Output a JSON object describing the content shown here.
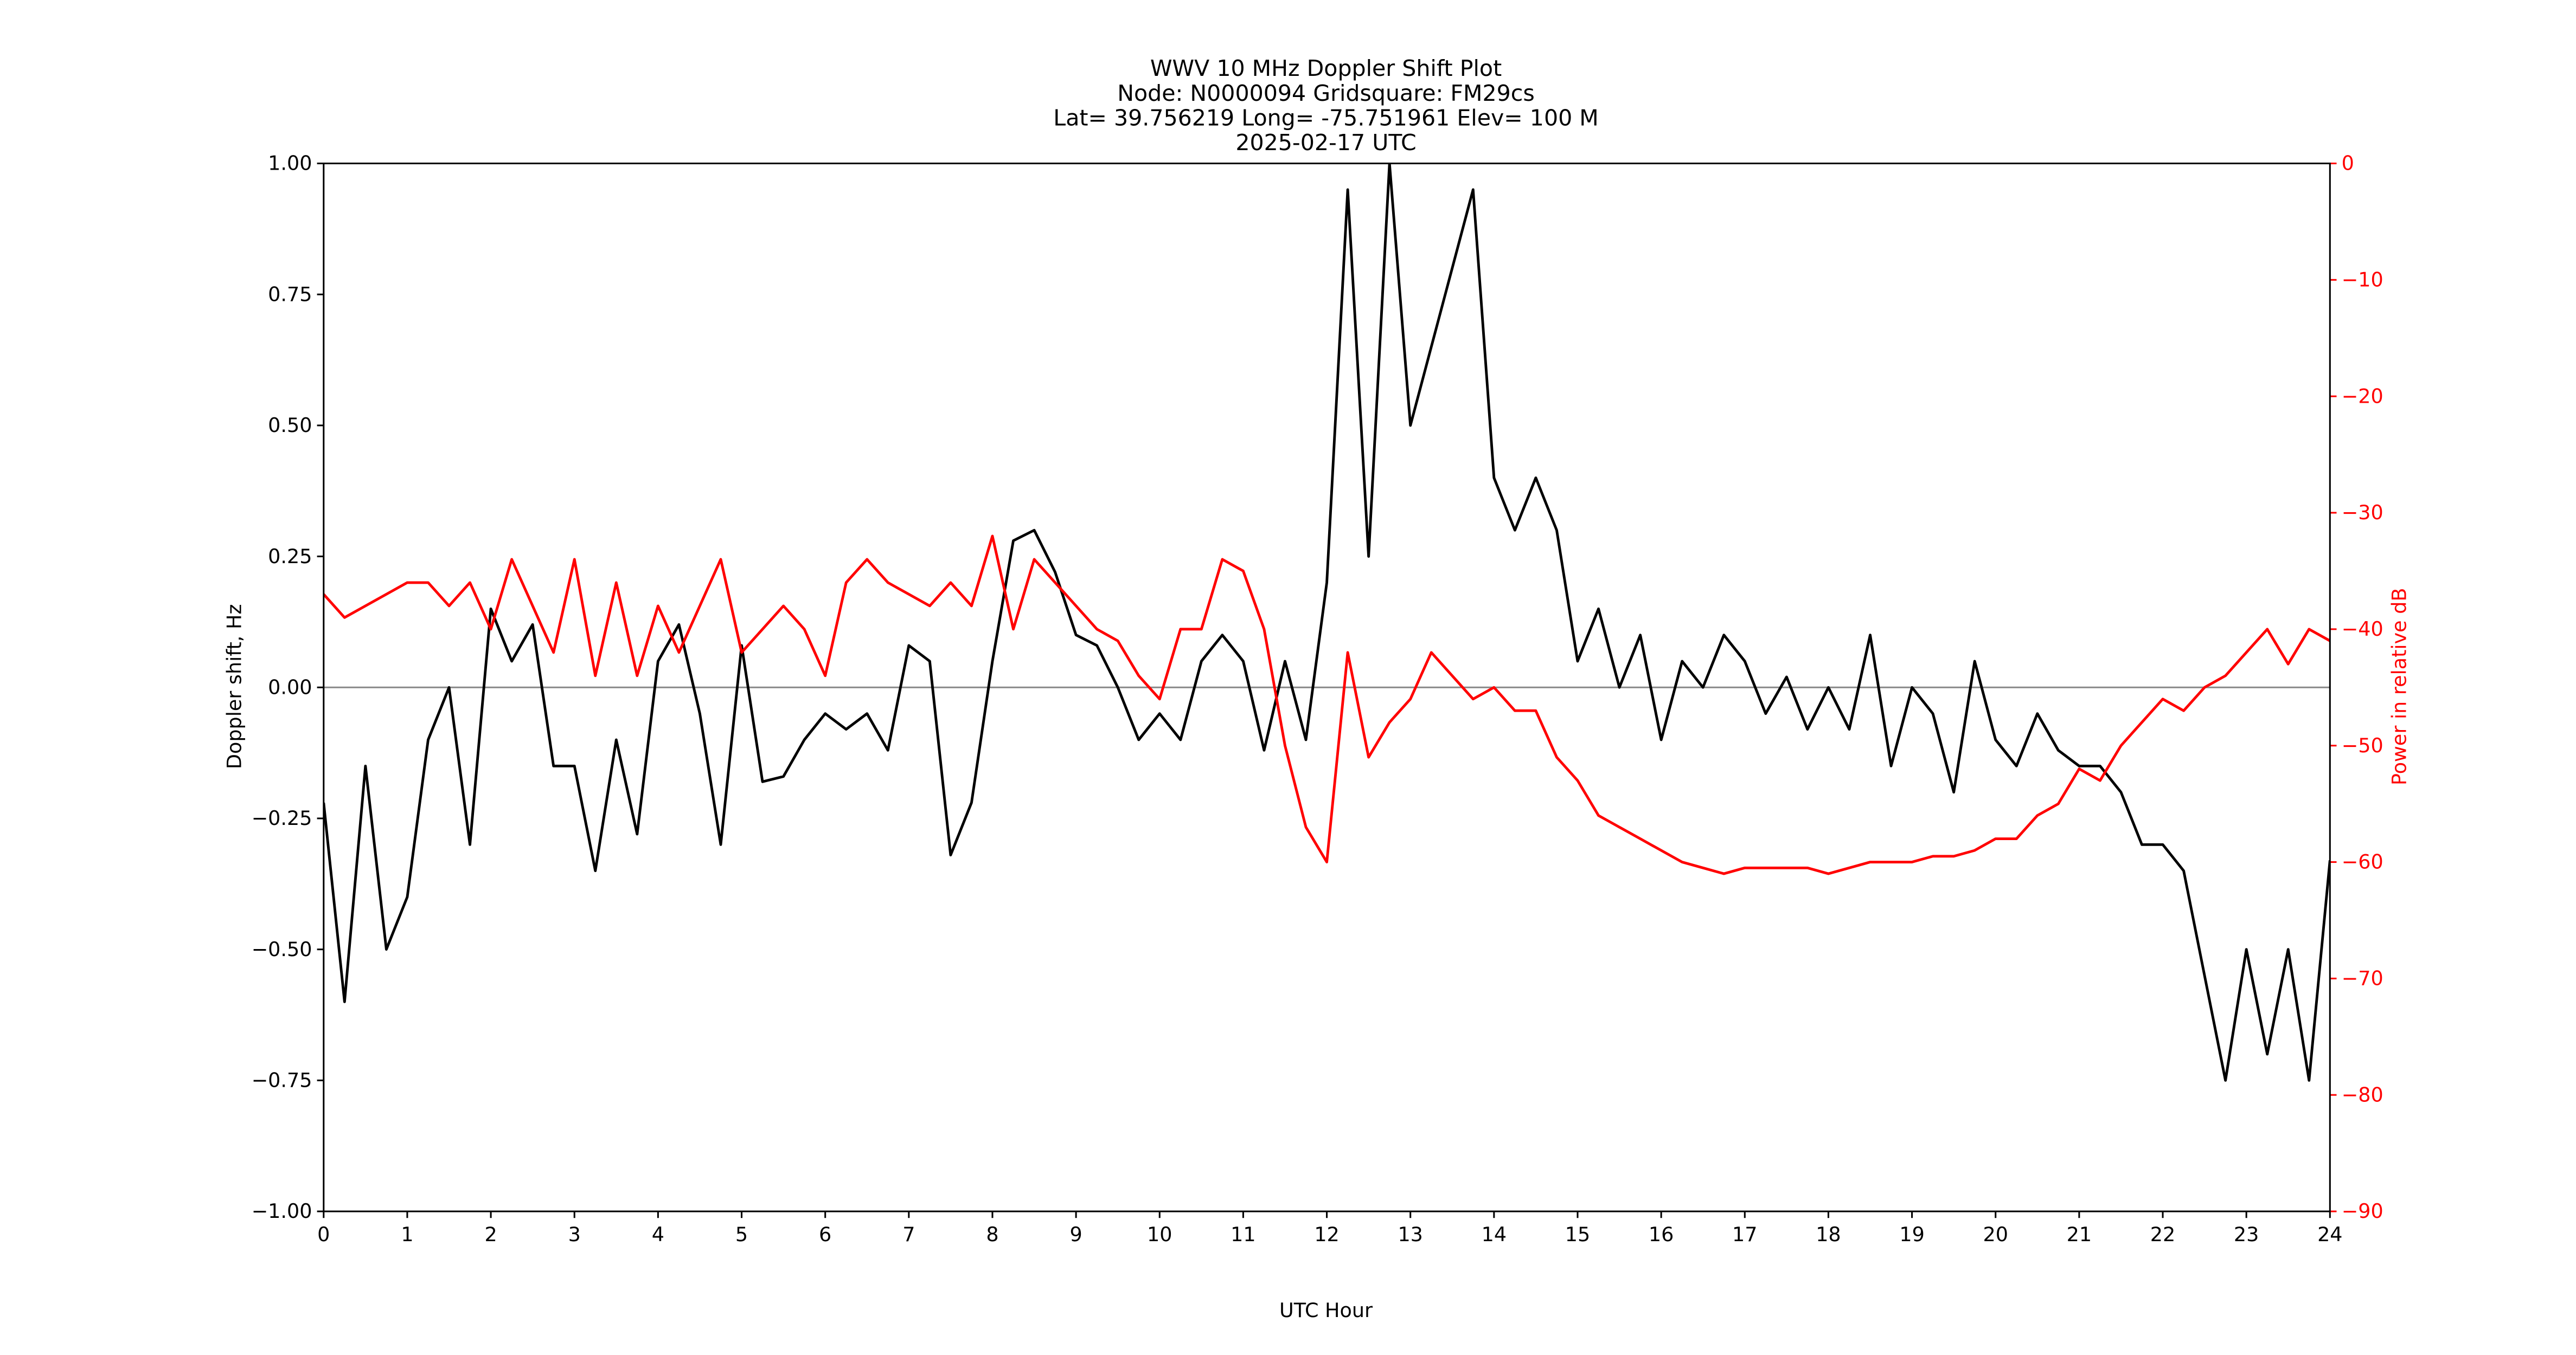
{
  "chart_data": {
    "type": "line",
    "title": [
      "WWV 10 MHz Doppler Shift Plot",
      "Node:  N0000094     Gridsquare:  FM29cs",
      "Lat= 39.756219    Long= -75.751961    Elev= 100 M",
      "2025-02-17  UTC"
    ],
    "xlabel": "UTC Hour",
    "ylabel": "Doppler shift, Hz",
    "y2label": "Power in relative dB",
    "y2color": "#ff0000",
    "xlim": [
      0,
      24
    ],
    "ylim": [
      -1,
      1
    ],
    "y2lim": [
      -90,
      0
    ],
    "xticks": [
      0,
      1,
      2,
      3,
      4,
      5,
      6,
      7,
      8,
      9,
      10,
      11,
      12,
      13,
      14,
      15,
      16,
      17,
      18,
      19,
      20,
      21,
      22,
      23,
      24
    ],
    "yticks": [
      {
        "value": -1,
        "label": "−1.00"
      },
      {
        "value": -0.75,
        "label": "−0.75"
      },
      {
        "value": -0.5,
        "label": "−0.50"
      },
      {
        "value": -0.25,
        "label": "−0.25"
      },
      {
        "value": 0,
        "label": "0.00"
      },
      {
        "value": 0.25,
        "label": "0.25"
      },
      {
        "value": 0.5,
        "label": "0.50"
      },
      {
        "value": 0.75,
        "label": "0.75"
      },
      {
        "value": 1,
        "label": "1.00"
      }
    ],
    "y2ticks": [
      {
        "value": -90,
        "label": "−90"
      },
      {
        "value": -80,
        "label": "−80"
      },
      {
        "value": -70,
        "label": "−70"
      },
      {
        "value": -60,
        "label": "−60"
      },
      {
        "value": -50,
        "label": "−50"
      },
      {
        "value": -40,
        "label": "−40"
      },
      {
        "value": -30,
        "label": "−30"
      },
      {
        "value": -20,
        "label": "−20"
      },
      {
        "value": -10,
        "label": "−10"
      },
      0
    ],
    "hline": 0,
    "x": [
      0,
      0.25,
      0.5,
      0.75,
      1,
      1.25,
      1.5,
      1.75,
      2,
      2.25,
      2.5,
      2.75,
      3,
      3.25,
      3.5,
      3.75,
      4,
      4.25,
      4.5,
      4.75,
      5,
      5.25,
      5.5,
      5.75,
      6,
      6.25,
      6.5,
      6.75,
      7,
      7.25,
      7.5,
      7.75,
      8,
      8.25,
      8.5,
      8.75,
      9,
      9.25,
      9.5,
      9.75,
      10,
      10.25,
      10.5,
      10.75,
      11,
      11.25,
      11.5,
      11.75,
      12,
      12.25,
      12.5,
      12.75,
      13,
      13.25,
      13.5,
      13.75,
      14,
      14.25,
      14.5,
      14.75,
      15,
      15.25,
      15.5,
      15.75,
      16,
      16.25,
      16.5,
      16.75,
      17,
      17.25,
      17.5,
      17.75,
      18,
      18.25,
      18.5,
      18.75,
      19,
      19.25,
      19.5,
      19.75,
      20,
      20.25,
      20.5,
      20.75,
      21,
      21.25,
      21.5,
      21.75,
      22,
      22.25,
      22.5,
      22.75,
      23,
      23.25,
      23.5,
      23.75,
      24
    ],
    "series": [
      {
        "name": "Doppler shift",
        "color": "#000000",
        "values": [
          -0.22,
          -0.6,
          -0.15,
          -0.5,
          -0.4,
          -0.1,
          0.0,
          -0.3,
          0.15,
          0.05,
          0.12,
          -0.15,
          -0.15,
          -0.35,
          -0.1,
          -0.28,
          0.05,
          0.12,
          -0.05,
          -0.3,
          0.08,
          -0.18,
          -0.17,
          -0.1,
          -0.05,
          -0.08,
          -0.05,
          -0.12,
          0.08,
          0.05,
          -0.32,
          -0.22,
          0.05,
          0.28,
          0.3,
          0.22,
          0.1,
          0.08,
          0.0,
          -0.1,
          -0.05,
          -0.1,
          0.05,
          0.1,
          0.05,
          -0.12,
          0.05,
          -0.1,
          0.2,
          0.95,
          0.25,
          1.0,
          0.5,
          0.65,
          0.8,
          0.95,
          0.4,
          0.3,
          0.4,
          0.3,
          0.05,
          0.15,
          0.0,
          0.1,
          -0.1,
          0.05,
          0.0,
          0.1,
          0.05,
          -0.05,
          0.02,
          -0.08,
          0.0,
          -0.08,
          0.1,
          -0.15,
          0.0,
          -0.05,
          -0.2,
          0.05,
          -0.1,
          -0.15,
          -0.05,
          -0.12,
          -0.15,
          -0.15,
          -0.2,
          -0.3,
          -0.3,
          -0.35,
          -0.55,
          -0.75,
          -0.5,
          -0.7,
          -0.5,
          -0.75,
          -0.33
        ]
      },
      {
        "name": "Power",
        "color": "#ff0000",
        "axis": "y2",
        "values": [
          -37,
          -39,
          -38,
          -37,
          -36,
          -36,
          -38,
          -36,
          -40,
          -34,
          -38,
          -42,
          -34,
          -44,
          -36,
          -44,
          -38,
          -42,
          -38,
          -34,
          -42,
          -40,
          -38,
          -40,
          -44,
          -36,
          -34,
          -36,
          -37,
          -38,
          -36,
          -38,
          -32,
          -40,
          -34,
          -36,
          -38,
          -40,
          -41,
          -44,
          -46,
          -40,
          -40,
          -34,
          -35,
          -40,
          -50,
          -57,
          -60,
          -42,
          -51,
          -48,
          -46,
          -42,
          -44,
          -46,
          -45,
          -47,
          -47,
          -51,
          -53,
          -56,
          -57,
          -58,
          -59,
          -60,
          -60.5,
          -61,
          -60.5,
          -60.5,
          -60.5,
          -60.5,
          -61,
          -60.5,
          -60,
          -60,
          -60,
          -59.5,
          -59.5,
          -59,
          -58,
          -58,
          -56,
          -55,
          -52,
          -53,
          -50,
          -48,
          -46,
          -47,
          -45,
          -44,
          -42,
          -40,
          -43,
          -40,
          -41
        ]
      }
    ]
  }
}
